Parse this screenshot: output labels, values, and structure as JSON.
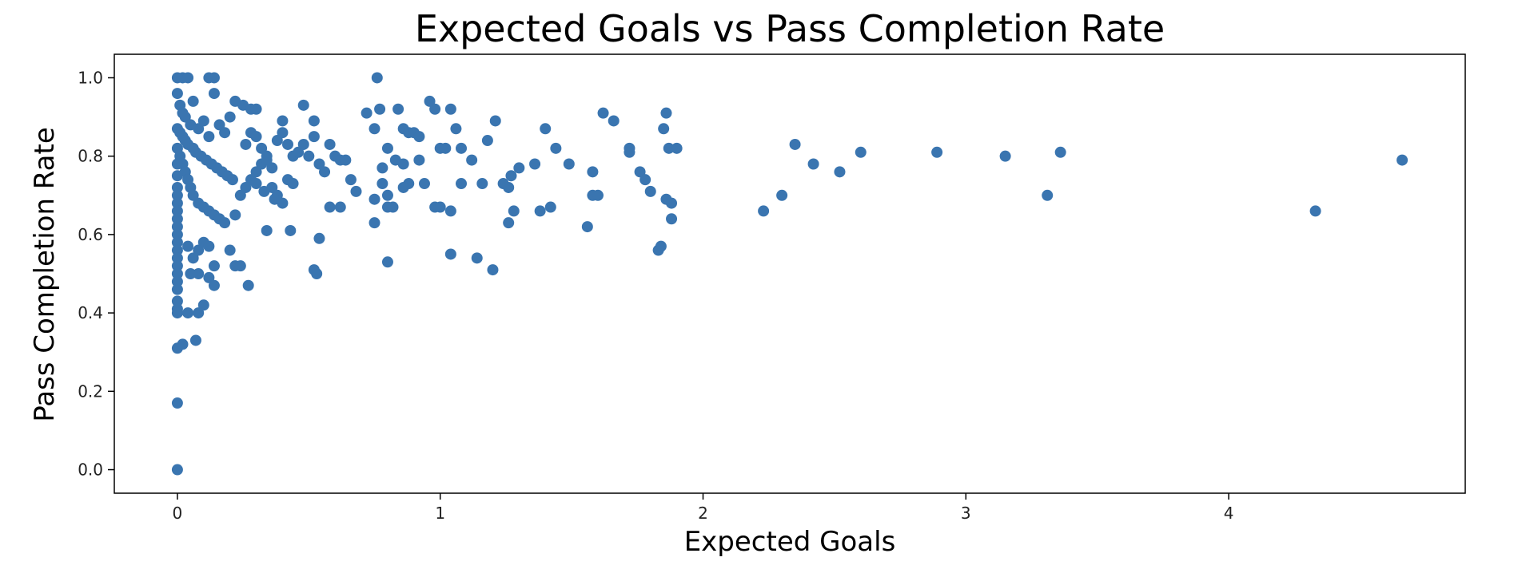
{
  "chart_data": {
    "type": "scatter",
    "title": "Expected Goals vs Pass Completion Rate",
    "xlabel": "Expected Goals",
    "ylabel": "Pass Completion Rate",
    "xlim": [
      -0.24,
      4.9
    ],
    "ylim": [
      -0.06,
      1.06
    ],
    "xticks": [
      0,
      1,
      2,
      3,
      4
    ],
    "xtick_labels": [
      "0",
      "1",
      "2",
      "3",
      "4"
    ],
    "yticks": [
      0.0,
      0.2,
      0.4,
      0.6,
      0.8,
      1.0
    ],
    "ytick_labels": [
      "0.0",
      "0.2",
      "0.4",
      "0.6",
      "0.8",
      "1.0"
    ],
    "grid": false,
    "legend": "none",
    "marker_color": "#3a75b0",
    "points": [
      [
        0.0,
        1.0
      ],
      [
        0.02,
        1.0
      ],
      [
        0.04,
        1.0
      ],
      [
        0.12,
        1.0
      ],
      [
        0.14,
        1.0
      ],
      [
        0.76,
        1.0
      ],
      [
        0.0,
        0.96
      ],
      [
        0.01,
        0.93
      ],
      [
        0.02,
        0.91
      ],
      [
        0.03,
        0.9
      ],
      [
        0.05,
        0.88
      ],
      [
        0.06,
        0.94
      ],
      [
        0.08,
        0.87
      ],
      [
        0.1,
        0.89
      ],
      [
        0.12,
        0.85
      ],
      [
        0.14,
        0.96
      ],
      [
        0.16,
        0.88
      ],
      [
        0.18,
        0.86
      ],
      [
        0.2,
        0.9
      ],
      [
        0.22,
        0.94
      ],
      [
        0.25,
        0.93
      ],
      [
        0.28,
        0.92
      ],
      [
        0.3,
        0.92
      ],
      [
        0.4,
        0.89
      ],
      [
        0.48,
        0.93
      ],
      [
        0.52,
        0.89
      ],
      [
        0.0,
        0.87
      ],
      [
        0.01,
        0.86
      ],
      [
        0.02,
        0.85
      ],
      [
        0.03,
        0.84
      ],
      [
        0.04,
        0.83
      ],
      [
        0.06,
        0.82
      ],
      [
        0.07,
        0.81
      ],
      [
        0.09,
        0.8
      ],
      [
        0.11,
        0.79
      ],
      [
        0.13,
        0.78
      ],
      [
        0.15,
        0.77
      ],
      [
        0.17,
        0.76
      ],
      [
        0.19,
        0.75
      ],
      [
        0.21,
        0.74
      ],
      [
        0.0,
        0.82
      ],
      [
        0.01,
        0.8
      ],
      [
        0.02,
        0.78
      ],
      [
        0.03,
        0.76
      ],
      [
        0.04,
        0.74
      ],
      [
        0.05,
        0.72
      ],
      [
        0.06,
        0.7
      ],
      [
        0.08,
        0.68
      ],
      [
        0.1,
        0.67
      ],
      [
        0.12,
        0.66
      ],
      [
        0.14,
        0.65
      ],
      [
        0.16,
        0.64
      ],
      [
        0.18,
        0.63
      ],
      [
        0.0,
        0.78
      ],
      [
        0.0,
        0.75
      ],
      [
        0.0,
        0.72
      ],
      [
        0.0,
        0.7
      ],
      [
        0.0,
        0.68
      ],
      [
        0.0,
        0.66
      ],
      [
        0.0,
        0.64
      ],
      [
        0.0,
        0.62
      ],
      [
        0.0,
        0.6
      ],
      [
        0.0,
        0.58
      ],
      [
        0.0,
        0.56
      ],
      [
        0.0,
        0.54
      ],
      [
        0.0,
        0.52
      ],
      [
        0.0,
        0.5
      ],
      [
        0.0,
        0.48
      ],
      [
        0.0,
        0.46
      ],
      [
        0.0,
        0.43
      ],
      [
        0.0,
        0.41
      ],
      [
        0.0,
        0.4
      ],
      [
        0.0,
        0.31
      ],
      [
        0.02,
        0.32
      ],
      [
        0.0,
        0.17
      ],
      [
        0.0,
        0.0
      ],
      [
        0.04,
        0.57
      ],
      [
        0.06,
        0.54
      ],
      [
        0.08,
        0.56
      ],
      [
        0.1,
        0.58
      ],
      [
        0.12,
        0.57
      ],
      [
        0.14,
        0.52
      ],
      [
        0.05,
        0.5
      ],
      [
        0.08,
        0.5
      ],
      [
        0.12,
        0.49
      ],
      [
        0.14,
        0.47
      ],
      [
        0.04,
        0.4
      ],
      [
        0.08,
        0.4
      ],
      [
        0.1,
        0.42
      ],
      [
        0.07,
        0.33
      ],
      [
        0.2,
        0.56
      ],
      [
        0.22,
        0.52
      ],
      [
        0.24,
        0.52
      ],
      [
        0.27,
        0.47
      ],
      [
        0.22,
        0.65
      ],
      [
        0.24,
        0.7
      ],
      [
        0.26,
        0.72
      ],
      [
        0.28,
        0.74
      ],
      [
        0.3,
        0.76
      ],
      [
        0.32,
        0.78
      ],
      [
        0.34,
        0.8
      ],
      [
        0.26,
        0.83
      ],
      [
        0.28,
        0.86
      ],
      [
        0.3,
        0.85
      ],
      [
        0.32,
        0.82
      ],
      [
        0.34,
        0.79
      ],
      [
        0.36,
        0.77
      ],
      [
        0.38,
        0.84
      ],
      [
        0.4,
        0.86
      ],
      [
        0.42,
        0.83
      ],
      [
        0.44,
        0.8
      ],
      [
        0.46,
        0.81
      ],
      [
        0.48,
        0.83
      ],
      [
        0.3,
        0.73
      ],
      [
        0.33,
        0.71
      ],
      [
        0.36,
        0.72
      ],
      [
        0.38,
        0.7
      ],
      [
        0.4,
        0.68
      ],
      [
        0.42,
        0.74
      ],
      [
        0.44,
        0.73
      ],
      [
        0.34,
        0.61
      ],
      [
        0.43,
        0.61
      ],
      [
        0.37,
        0.69
      ],
      [
        0.5,
        0.8
      ],
      [
        0.52,
        0.85
      ],
      [
        0.54,
        0.78
      ],
      [
        0.56,
        0.76
      ],
      [
        0.58,
        0.83
      ],
      [
        0.58,
        0.67
      ],
      [
        0.6,
        0.8
      ],
      [
        0.62,
        0.79
      ],
      [
        0.64,
        0.79
      ],
      [
        0.62,
        0.67
      ],
      [
        0.66,
        0.74
      ],
      [
        0.68,
        0.71
      ],
      [
        0.52,
        0.51
      ],
      [
        0.53,
        0.5
      ],
      [
        0.54,
        0.59
      ],
      [
        0.72,
        0.91
      ],
      [
        0.75,
        0.87
      ],
      [
        0.77,
        0.92
      ],
      [
        0.78,
        0.77
      ],
      [
        0.78,
        0.73
      ],
      [
        0.75,
        0.69
      ],
      [
        0.75,
        0.63
      ],
      [
        0.8,
        0.7
      ],
      [
        0.8,
        0.67
      ],
      [
        0.82,
        0.67
      ],
      [
        0.8,
        0.82
      ],
      [
        0.83,
        0.79
      ],
      [
        0.84,
        0.92
      ],
      [
        0.86,
        0.87
      ],
      [
        0.88,
        0.86
      ],
      [
        0.9,
        0.86
      ],
      [
        0.86,
        0.78
      ],
      [
        0.88,
        0.73
      ],
      [
        0.86,
        0.72
      ],
      [
        0.8,
        0.53
      ],
      [
        0.92,
        0.85
      ],
      [
        0.94,
        0.73
      ],
      [
        0.92,
        0.79
      ],
      [
        0.96,
        0.94
      ],
      [
        0.98,
        0.92
      ],
      [
        1.0,
        0.82
      ],
      [
        1.02,
        0.82
      ],
      [
        1.04,
        0.92
      ],
      [
        1.06,
        0.87
      ],
      [
        0.98,
        0.67
      ],
      [
        1.0,
        0.67
      ],
      [
        1.04,
        0.66
      ],
      [
        1.08,
        0.73
      ],
      [
        1.04,
        0.55
      ],
      [
        1.08,
        0.82
      ],
      [
        1.12,
        0.79
      ],
      [
        1.14,
        0.54
      ],
      [
        1.16,
        0.73
      ],
      [
        1.18,
        0.84
      ],
      [
        1.21,
        0.89
      ],
      [
        1.2,
        0.51
      ],
      [
        1.24,
        0.73
      ],
      [
        1.26,
        0.72
      ],
      [
        1.27,
        0.75
      ],
      [
        1.3,
        0.77
      ],
      [
        1.28,
        0.66
      ],
      [
        1.26,
        0.63
      ],
      [
        1.36,
        0.78
      ],
      [
        1.38,
        0.66
      ],
      [
        1.4,
        0.87
      ],
      [
        1.42,
        0.67
      ],
      [
        1.44,
        0.82
      ],
      [
        1.49,
        0.78
      ],
      [
        1.56,
        0.62
      ],
      [
        1.58,
        0.76
      ],
      [
        1.58,
        0.7
      ],
      [
        1.6,
        0.7
      ],
      [
        1.62,
        0.91
      ],
      [
        1.66,
        0.89
      ],
      [
        1.72,
        0.82
      ],
      [
        1.72,
        0.81
      ],
      [
        1.76,
        0.76
      ],
      [
        1.78,
        0.74
      ],
      [
        1.8,
        0.71
      ],
      [
        1.84,
        0.57
      ],
      [
        1.83,
        0.56
      ],
      [
        1.85,
        0.87
      ],
      [
        1.86,
        0.91
      ],
      [
        1.86,
        0.69
      ],
      [
        1.87,
        0.82
      ],
      [
        1.88,
        0.68
      ],
      [
        1.88,
        0.64
      ],
      [
        1.9,
        0.82
      ],
      [
        2.23,
        0.66
      ],
      [
        2.3,
        0.7
      ],
      [
        2.35,
        0.83
      ],
      [
        2.42,
        0.78
      ],
      [
        2.52,
        0.76
      ],
      [
        2.6,
        0.81
      ],
      [
        2.89,
        0.81
      ],
      [
        3.15,
        0.8
      ],
      [
        3.31,
        0.7
      ],
      [
        3.36,
        0.81
      ],
      [
        4.33,
        0.66
      ],
      [
        4.66,
        0.79
      ]
    ]
  }
}
